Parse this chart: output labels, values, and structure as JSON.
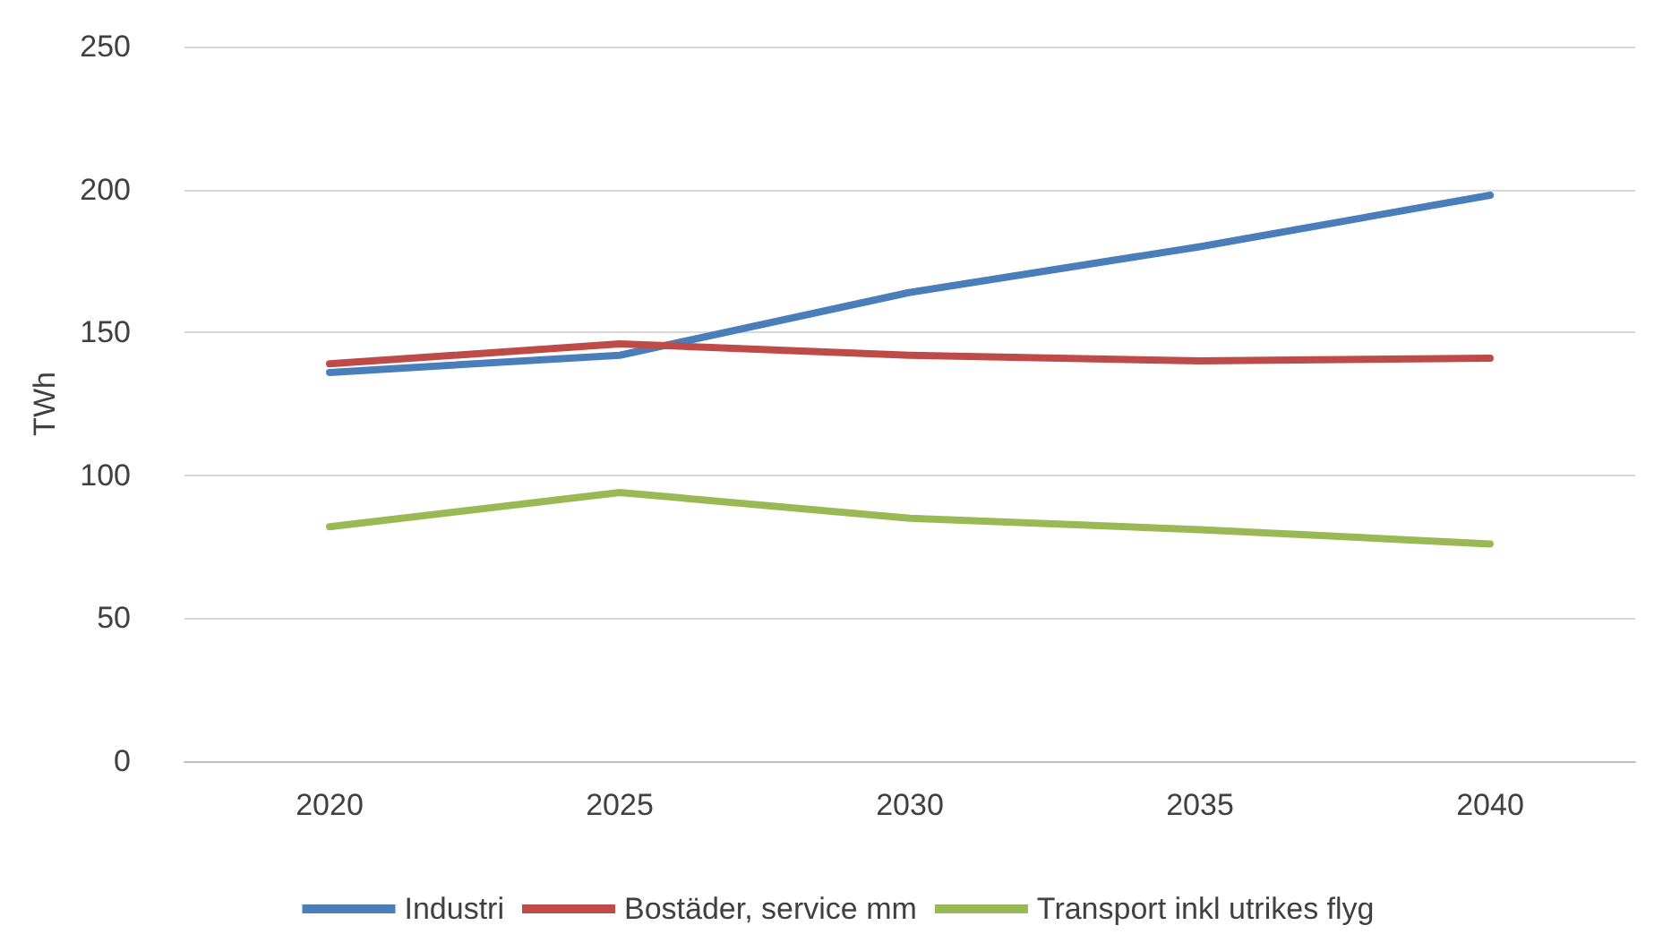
{
  "chart_data": {
    "type": "line",
    "ylabel": "TWh",
    "categories": [
      "2020",
      "2025",
      "2030",
      "2035",
      "2040"
    ],
    "series": [
      {
        "name": "Industri",
        "color": "#4a7ebb",
        "values": [
          136,
          142,
          164,
          180,
          198
        ]
      },
      {
        "name": "Bostäder, service mm",
        "color": "#be4b48",
        "values": [
          139,
          146,
          142,
          140,
          141
        ]
      },
      {
        "name": "Transport inkl utrikes flyg",
        "color": "#98b954",
        "values": [
          82,
          94,
          85,
          81,
          76
        ]
      }
    ],
    "ylim": [
      0,
      250
    ],
    "yticks": [
      0,
      50,
      100,
      150,
      200,
      250
    ],
    "grid": "y",
    "legend": "bottom",
    "marker": "none",
    "line_style": "solid"
  }
}
